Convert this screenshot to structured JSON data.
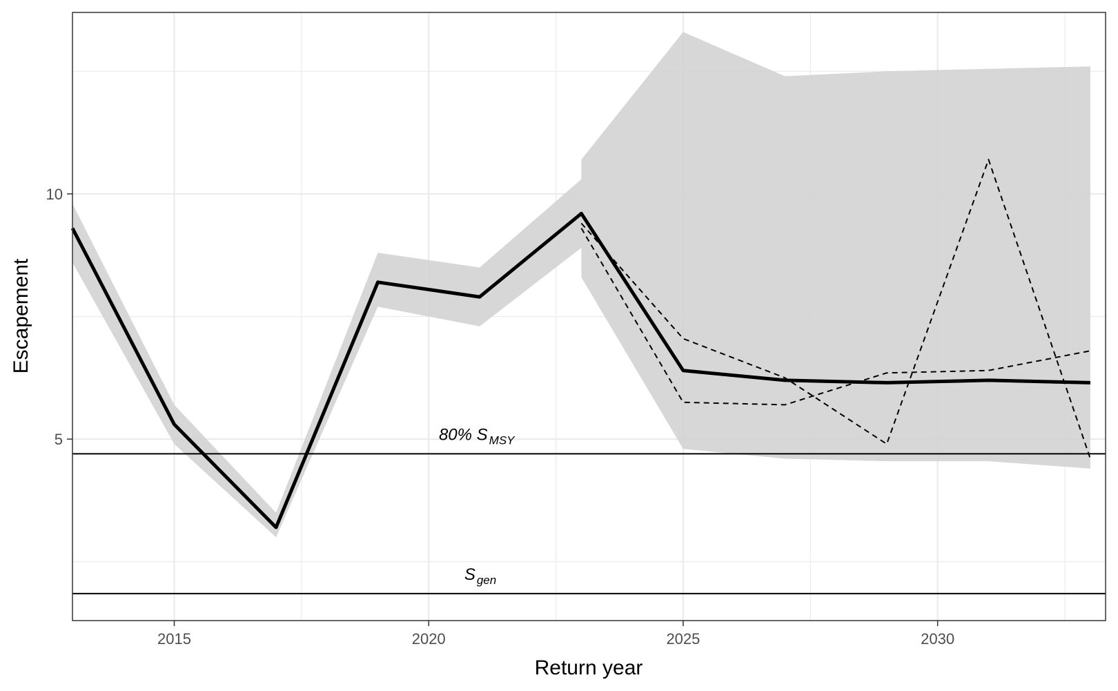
{
  "chart_data": {
    "type": "line",
    "xlabel": "Return year",
    "ylabel": "Escapement",
    "xlim": [
      2013,
      2033.3
    ],
    "ylim": [
      1.3,
      13.7
    ],
    "x_ticks": [
      2015,
      2020,
      2025,
      2030
    ],
    "x_tick_labels": [
      "2015",
      "2020",
      "2025",
      "2030"
    ],
    "y_ticks": [
      5,
      10
    ],
    "y_tick_labels": [
      "5",
      "10"
    ],
    "grid": true,
    "colors": {
      "line": "#000000",
      "ribbon": "#d3d3d3",
      "grid": "#ebebeb",
      "tick_label": "#4d4d4d"
    },
    "ribbon": {
      "x": [
        2013,
        2015,
        2017,
        2019,
        2021,
        2023,
        2023,
        2025,
        2027,
        2029,
        2031,
        2033
      ],
      "lower": [
        8.6,
        4.9,
        3.0,
        7.7,
        7.3,
        8.9,
        8.3,
        4.8,
        4.6,
        4.55,
        4.55,
        4.4
      ],
      "upper": [
        9.8,
        5.7,
        3.5,
        8.8,
        8.5,
        10.3,
        10.7,
        13.3,
        12.4,
        12.5,
        12.55,
        12.6
      ]
    },
    "series": [
      {
        "style": "solid",
        "x": [
          2013,
          2015,
          2017,
          2019,
          2021,
          2023,
          2025,
          2027,
          2029,
          2031,
          2033
        ],
        "values": [
          9.3,
          5.3,
          3.2,
          8.2,
          7.9,
          9.6,
          6.4,
          6.2,
          6.15,
          6.2,
          6.15
        ]
      },
      {
        "style": "dashed",
        "x": [
          2023,
          2025,
          2027,
          2029,
          2031,
          2033
        ],
        "values": [
          9.3,
          5.75,
          5.7,
          6.35,
          6.4,
          6.8
        ]
      },
      {
        "style": "dashed",
        "x": [
          2023,
          2025,
          2027,
          2029,
          2031,
          2033
        ],
        "values": [
          9.4,
          7.05,
          6.25,
          4.9,
          10.7,
          4.6
        ]
      }
    ],
    "hlines": [
      {
        "y": 4.7,
        "label_main": "80% S",
        "label_sub": "MSY",
        "label_x": 2020.2
      },
      {
        "y": 1.85,
        "label_main": "S",
        "label_sub": "gen",
        "label_x": 2020.7
      }
    ]
  }
}
